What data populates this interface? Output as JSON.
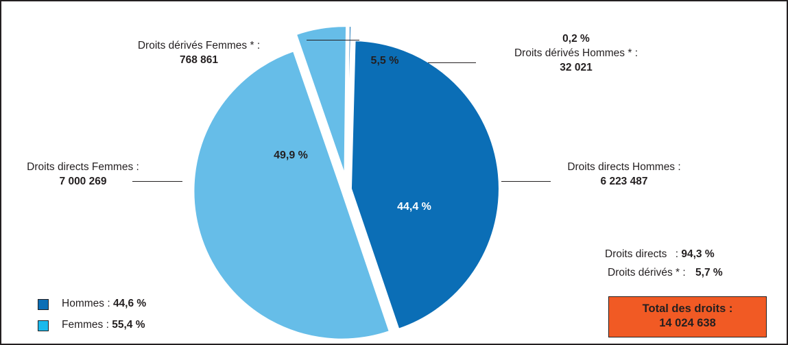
{
  "colors": {
    "hommes": "#0b6eb6",
    "femmes": "#66bde8",
    "legend_femmes": "#1ab9ec",
    "total_box": "#f15a24",
    "text": "#231f20",
    "separator": "#ffffff"
  },
  "chart_data": {
    "type": "pie",
    "slices": [
      {
        "label": "Droits directs Hommes :",
        "value": 6223487,
        "value_label": "6 223 487",
        "percent_label": "44,4 %",
        "group": "hommes"
      },
      {
        "label": "Droits directs Femmes :",
        "value": 7000269,
        "value_label": "7 000 269",
        "percent_label": "49,9 %",
        "group": "femmes"
      },
      {
        "label": "Droits dérivés Femmes * :",
        "value": 768861,
        "value_label": "768 861",
        "percent_label": "5,5 %",
        "group": "femmes",
        "exploded": true
      },
      {
        "label": "Droits dérivés Hommes * :",
        "value": 32021,
        "value_label": "32 021",
        "percent_label": "0,2 %",
        "group": "hommes",
        "exploded": true
      }
    ],
    "legend": [
      {
        "label": "Hommes :",
        "value": "44,6 %",
        "color_key": "hommes"
      },
      {
        "label": "Femmes :",
        "value": "55,4 %",
        "color_key": "femmes"
      }
    ],
    "summary": {
      "directs_label": "Droits directs",
      "directs_sep": ":",
      "directs_value": "94,3 %",
      "derives_label": "Droits dérivés * :",
      "derives_value": "5,7 %"
    },
    "total": {
      "label": "Total des droits :",
      "value": "14 024 638"
    }
  }
}
